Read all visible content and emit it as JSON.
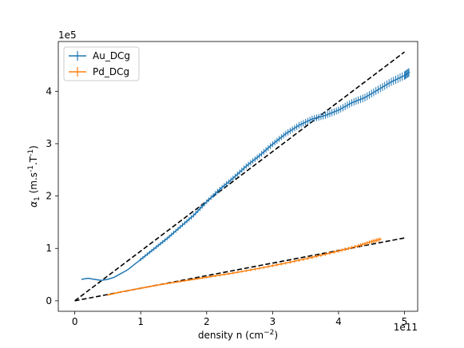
{
  "chart_data": {
    "type": "line",
    "title": "",
    "xlabel": {
      "pre": "density n (cm",
      "sup": "−2",
      "post": ")"
    },
    "ylabel": {
      "sym": "α",
      "sub": "1",
      "pre": " (m.s",
      "sup1": "-1",
      "mid": ".T",
      "sup2": "-1",
      "post": ")"
    },
    "x_offset_text": "1e11",
    "y_offset_text": "1e5",
    "xlim": [
      -0.25,
      5.2
    ],
    "ylim": [
      -0.2,
      4.95
    ],
    "x_ticks": [
      0,
      1,
      2,
      3,
      4,
      5
    ],
    "x_tick_labels": [
      "0",
      "1",
      "2",
      "3",
      "4",
      "5"
    ],
    "y_ticks": [
      0,
      1,
      2,
      3,
      4
    ],
    "y_tick_labels": [
      "0",
      "1",
      "2",
      "3",
      "4"
    ],
    "grid": false,
    "legend_position": "top-left",
    "series": [
      {
        "name": "Au_DCg",
        "color": "#1f77b4",
        "x": [
          0.1,
          0.2,
          0.3,
          0.4,
          0.5,
          0.6,
          0.8,
          1.0,
          1.2,
          1.4,
          1.6,
          1.8,
          2.0,
          2.2,
          2.4,
          2.6,
          2.8,
          3.0,
          3.2,
          3.4,
          3.6,
          3.8,
          4.0,
          4.2,
          4.4,
          4.6,
          4.8,
          5.0,
          5.08
        ],
        "y": [
          0.41,
          0.43,
          0.41,
          0.39,
          0.41,
          0.45,
          0.59,
          0.79,
          0.99,
          1.19,
          1.41,
          1.63,
          1.89,
          2.13,
          2.34,
          2.57,
          2.77,
          2.99,
          3.19,
          3.35,
          3.47,
          3.54,
          3.64,
          3.78,
          3.88,
          4.03,
          4.18,
          4.3,
          4.37
        ],
        "error_bars": true
      },
      {
        "name": "Pd_DCg",
        "color": "#ff7f0e",
        "x": [
          0.5,
          0.7,
          1.0,
          1.3,
          1.6,
          2.0,
          2.4,
          2.8,
          3.2,
          3.6,
          4.0,
          4.3,
          4.5,
          4.65
        ],
        "y": [
          0.11,
          0.17,
          0.24,
          0.31,
          0.37,
          0.45,
          0.53,
          0.62,
          0.72,
          0.83,
          0.95,
          1.05,
          1.13,
          1.18
        ],
        "error_bars": true
      }
    ],
    "fit_lines": [
      {
        "x": [
          0,
          5.0
        ],
        "y": [
          0,
          4.75
        ],
        "color": "#000000",
        "style": "dashed"
      },
      {
        "x": [
          0,
          5.0
        ],
        "y": [
          0,
          1.2
        ],
        "color": "#000000",
        "style": "dashed"
      }
    ]
  }
}
